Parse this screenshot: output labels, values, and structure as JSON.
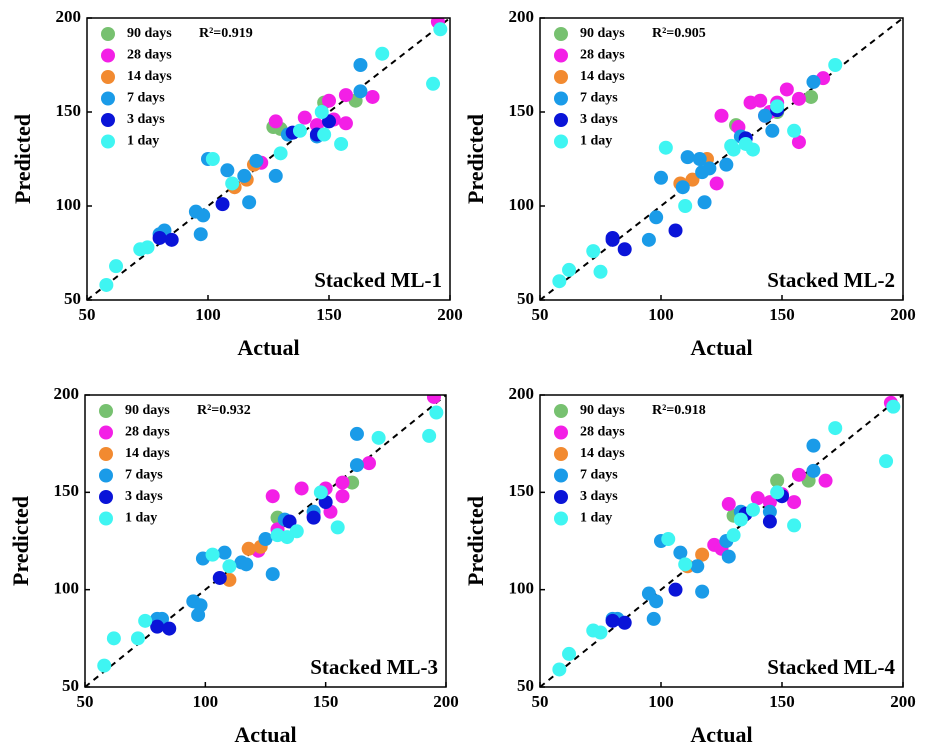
{
  "chart_data": [
    {
      "type": "scatter",
      "xlabel": "Actual",
      "ylabel": "Predicted",
      "metric": "R²=0.919",
      "annotation": "Stacked ML-1",
      "xlim": [
        50,
        200
      ],
      "ylim": [
        50,
        200
      ],
      "xticks": [
        50,
        100,
        150,
        200
      ],
      "yticks": [
        50,
        100,
        150,
        200
      ],
      "series": [
        {
          "name": "90 days",
          "color": "#77c170",
          "x": [
            130,
            148,
            161,
            127
          ],
          "values": [
            141,
            155,
            156,
            142
          ]
        },
        {
          "name": "28 days",
          "color": "#f31fe6",
          "x": [
            195,
            128,
            140,
            145,
            150,
            157,
            168,
            122,
            152,
            157
          ],
          "values": [
            198,
            145,
            147,
            143,
            156,
            159,
            158,
            123,
            146,
            144
          ]
        },
        {
          "name": "14 days",
          "color": "#f28a30",
          "x": [
            111,
            116,
            119
          ],
          "values": [
            110,
            114,
            122
          ]
        },
        {
          "name": "7 days",
          "color": "#1a9be8",
          "x": [
            95,
            97,
            98,
            100,
            108,
            115,
            117,
            128,
            133,
            145,
            163,
            163,
            80,
            82,
            120
          ],
          "values": [
            97,
            85,
            95,
            125,
            119,
            116,
            102,
            116,
            138,
            137,
            175,
            161,
            85,
            87,
            124
          ]
        },
        {
          "name": "3 days",
          "color": "#0a14d8",
          "x": [
            80,
            85,
            106,
            135,
            145,
            150
          ],
          "values": [
            83,
            82,
            101,
            139,
            138,
            145
          ]
        },
        {
          "name": "1 day",
          "color": "#3ff5f2",
          "x": [
            58,
            62,
            72,
            75,
            102,
            110,
            130,
            138,
            148,
            155,
            172,
            193,
            196,
            147
          ],
          "values": [
            58,
            68,
            77,
            78,
            125,
            112,
            128,
            140,
            138,
            133,
            181,
            165,
            194,
            150
          ]
        }
      ]
    },
    {
      "type": "scatter",
      "xlabel": "Actual",
      "ylabel": "Predicted",
      "metric": "R²=0.905",
      "annotation": "Stacked ML-2",
      "xlim": [
        50,
        200
      ],
      "ylim": [
        50,
        200
      ],
      "xticks": [
        50,
        100,
        150,
        200
      ],
      "yticks": [
        50,
        100,
        150,
        200
      ],
      "series": [
        {
          "name": "90 days",
          "color": "#77c170",
          "x": [
            131,
            162,
            148
          ],
          "values": [
            143,
            158,
            150
          ]
        },
        {
          "name": "28 days",
          "color": "#f31fe6",
          "x": [
            125,
            132,
            137,
            141,
            143,
            148,
            152,
            157,
            167,
            157,
            123,
            145
          ],
          "values": [
            148,
            142,
            155,
            156,
            148,
            155,
            162,
            157,
            168,
            134,
            112,
            150
          ]
        },
        {
          "name": "14 days",
          "color": "#f28a30",
          "x": [
            108,
            113,
            119
          ],
          "values": [
            112,
            114,
            125
          ]
        },
        {
          "name": "7 days",
          "color": "#1a9be8",
          "x": [
            95,
            98,
            100,
            109,
            117,
            118,
            120,
            127,
            133,
            143,
            146,
            163,
            116,
            111
          ],
          "values": [
            82,
            94,
            115,
            110,
            118,
            102,
            120,
            122,
            137,
            148,
            140,
            166,
            125,
            126
          ]
        },
        {
          "name": "3 days",
          "color": "#0a14d8",
          "x": [
            80,
            80,
            85,
            106,
            135,
            148
          ],
          "values": [
            83,
            82,
            77,
            87,
            136,
            151
          ]
        },
        {
          "name": "1 day",
          "color": "#3ff5f2",
          "x": [
            58,
            62,
            72,
            75,
            102,
            110,
            130,
            138,
            148,
            155,
            172,
            129,
            135
          ],
          "values": [
            60,
            66,
            76,
            65,
            131,
            100,
            130,
            130,
            153,
            140,
            175,
            132,
            133
          ]
        }
      ]
    },
    {
      "type": "scatter",
      "xlabel": "Actual",
      "ylabel": "Predicted",
      "metric": "R²=0.932",
      "annotation": "Stacked ML-3",
      "xlim": [
        50,
        200
      ],
      "ylim": [
        50,
        200
      ],
      "xticks": [
        50,
        100,
        150,
        200
      ],
      "yticks": [
        50,
        100,
        150,
        200
      ],
      "series": [
        {
          "name": "90 days",
          "color": "#77c170",
          "x": [
            130,
            161
          ],
          "values": [
            137,
            155
          ]
        },
        {
          "name": "28 days",
          "color": "#f31fe6",
          "x": [
            195,
            128,
            140,
            150,
            157,
            168,
            122,
            152,
            157,
            130,
            145
          ],
          "values": [
            199,
            148,
            152,
            152,
            148,
            165,
            120,
            140,
            155,
            131,
            138
          ]
        },
        {
          "name": "14 days",
          "color": "#f28a30",
          "x": [
            110,
            118,
            123
          ],
          "values": [
            105,
            121,
            122
          ]
        },
        {
          "name": "7 days",
          "color": "#1a9be8",
          "x": [
            95,
            97,
            98,
            99,
            108,
            115,
            117,
            128,
            133,
            145,
            163,
            163,
            80,
            82,
            125
          ],
          "values": [
            94,
            87,
            92,
            116,
            119,
            114,
            113,
            108,
            136,
            140,
            180,
            164,
            85,
            85,
            126
          ]
        },
        {
          "name": "3 days",
          "color": "#0a14d8",
          "x": [
            80,
            85,
            106,
            135,
            145,
            150
          ],
          "values": [
            81,
            80,
            106,
            135,
            137,
            145
          ]
        },
        {
          "name": "1 day",
          "color": "#3ff5f2",
          "x": [
            58,
            62,
            72,
            75,
            103,
            110,
            130,
            138,
            148,
            155,
            172,
            193,
            196,
            134
          ],
          "values": [
            61,
            75,
            75,
            84,
            118,
            112,
            128,
            130,
            150,
            132,
            178,
            179,
            191,
            127
          ]
        }
      ]
    },
    {
      "type": "scatter",
      "xlabel": "Actual",
      "ylabel": "Predicted",
      "metric": "R²=0.918",
      "annotation": "Stacked ML-4",
      "xlim": [
        50,
        200
      ],
      "ylim": [
        50,
        200
      ],
      "xticks": [
        50,
        100,
        150,
        200
      ],
      "yticks": [
        50,
        100,
        150,
        200
      ],
      "series": [
        {
          "name": "90 days",
          "color": "#77c170",
          "x": [
            130,
            148,
            161
          ],
          "values": [
            138,
            156,
            156
          ]
        },
        {
          "name": "28 days",
          "color": "#f31fe6",
          "x": [
            195,
            128,
            140,
            145,
            150,
            157,
            168,
            122,
            125,
            155
          ],
          "values": [
            196,
            144,
            147,
            145,
            149,
            159,
            156,
            123,
            121,
            145
          ]
        },
        {
          "name": "14 days",
          "color": "#f28a30",
          "x": [
            117,
            111
          ],
          "values": [
            118,
            112
          ]
        },
        {
          "name": "7 days",
          "color": "#1a9be8",
          "x": [
            95,
            97,
            98,
            100,
            108,
            115,
            117,
            128,
            133,
            145,
            163,
            163,
            80,
            82,
            127
          ],
          "values": [
            98,
            85,
            94,
            125,
            119,
            112,
            99,
            117,
            140,
            140,
            174,
            161,
            85,
            85,
            125
          ]
        },
        {
          "name": "3 days",
          "color": "#0a14d8",
          "x": [
            80,
            85,
            106,
            135,
            145,
            150
          ],
          "values": [
            84,
            83,
            100,
            139,
            135,
            148
          ]
        },
        {
          "name": "1 day",
          "color": "#3ff5f2",
          "x": [
            58,
            62,
            72,
            75,
            103,
            110,
            130,
            138,
            148,
            155,
            172,
            193,
            196,
            133
          ],
          "values": [
            59,
            67,
            79,
            78,
            126,
            113,
            128,
            141,
            150,
            133,
            183,
            166,
            194,
            136
          ]
        }
      ]
    }
  ]
}
